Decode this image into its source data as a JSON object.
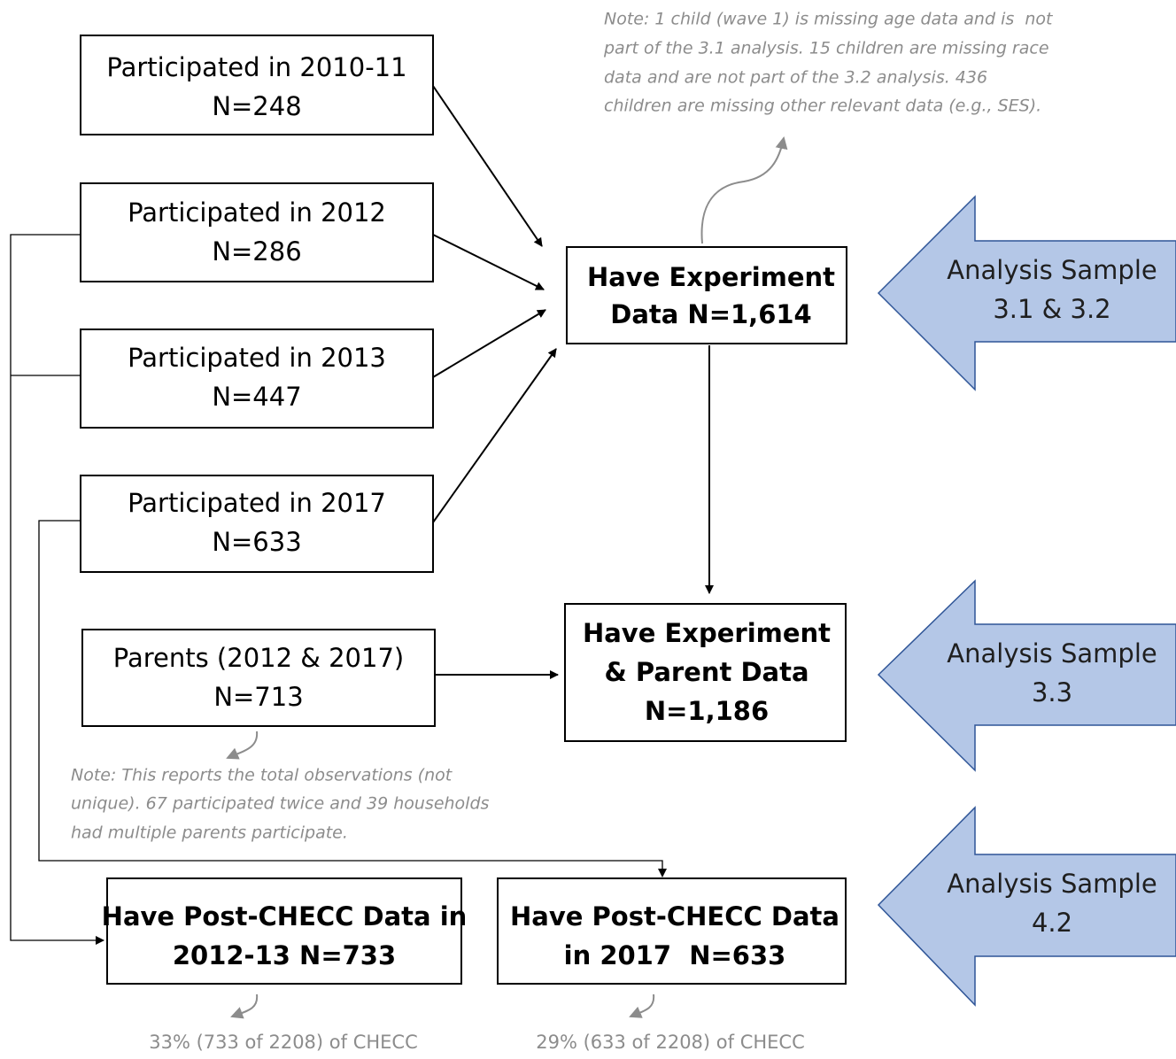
{
  "nodes": [
    {
      "lines": [
        "Participated in 2010-11",
        "N=248"
      ]
    },
    {
      "lines": [
        "Participated in 2012",
        "N=286"
      ]
    },
    {
      "lines": [
        "Participated in 2013",
        "N=447"
      ]
    },
    {
      "lines": [
        "Participated in 2017",
        "N=633"
      ]
    },
    {
      "lines": [
        "Parents (2012 & 2017)",
        "N=713"
      ]
    },
    {
      "lines": [
        "Have Experiment",
        "Data N=1,614"
      ]
    },
    {
      "lines": [
        "Have Experiment",
        "& Parent Data",
        "N=1,186"
      ]
    },
    {
      "lines": [
        "Have Post-CHECC Data in",
        "2012-13 N=733"
      ]
    },
    {
      "lines": [
        "Have Post-CHECC Data",
        "in 2017  N=633"
      ]
    }
  ],
  "samples": [
    {
      "lines": [
        "Analysis Sample",
        "3.1 & 3.2"
      ]
    },
    {
      "lines": [
        "Analysis Sample",
        "3.3"
      ]
    },
    {
      "lines": [
        "Analysis Sample",
        "4.2"
      ]
    }
  ],
  "notes": [
    {
      "lines": [
        "Note: 1 child (wave 1) is missing age data and is  not",
        "part of the 3.1 analysis. 15 children are missing race",
        "data and are not part of the 3.2 analysis. 436",
        "children are missing other relevant data (e.g., SES)."
      ]
    },
    {
      "lines": [
        "Note: This reports the total observations (not",
        "unique). 67 participated twice and 39 households",
        "had multiple parents participate."
      ]
    }
  ],
  "percentages": [
    "33% (733 of 2208) of CHECC",
    "29% (633 of 2208) of CHECC"
  ]
}
